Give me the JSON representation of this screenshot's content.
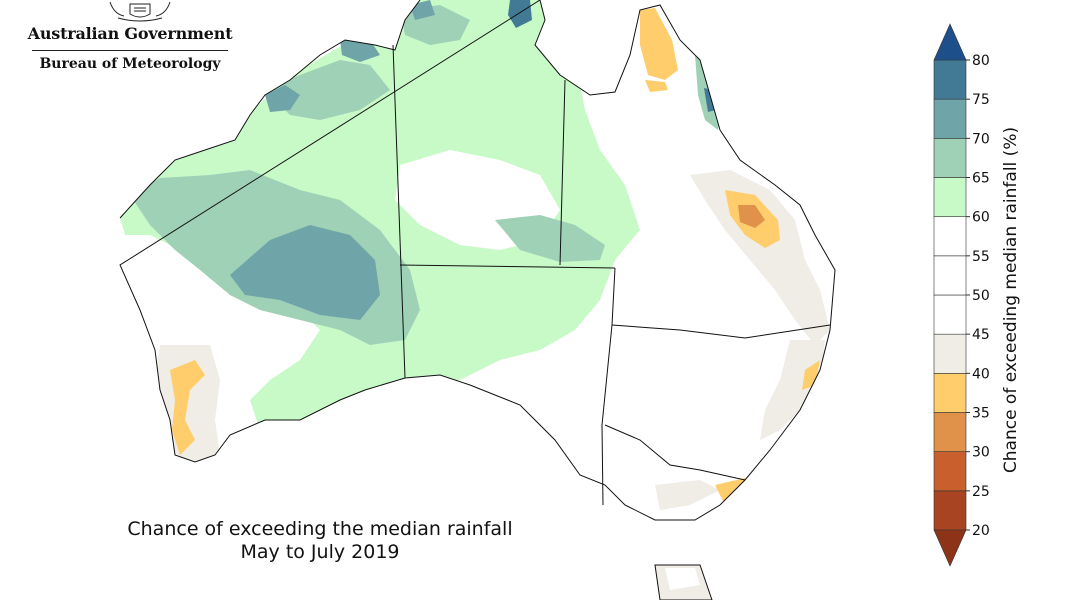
{
  "header": {
    "gov_title": "Australian Government",
    "gov_subtitle": "Bureau of Meteorology"
  },
  "caption": {
    "line1": "Chance of exceeding the median rainfall",
    "line2": "May to July 2019"
  },
  "legend": {
    "title": "Chance of exceeding median rainfall (%)",
    "ticks": [
      "20",
      "25",
      "30",
      "35",
      "40",
      "45",
      "50",
      "55",
      "60",
      "65",
      "70",
      "75",
      "80"
    ],
    "bins": [
      {
        "from": 20,
        "to": 25,
        "color": "#a84422"
      },
      {
        "from": 25,
        "to": 30,
        "color": "#c85f2d"
      },
      {
        "from": 30,
        "to": 35,
        "color": "#e0924a"
      },
      {
        "from": 35,
        "to": 40,
        "color": "#ffcd6b"
      },
      {
        "from": 40,
        "to": 45,
        "color": "#f0ece6"
      },
      {
        "from": 45,
        "to": 50,
        "color": "#ffffff"
      },
      {
        "from": 50,
        "to": 55,
        "color": "#ffffff"
      },
      {
        "from": 55,
        "to": 60,
        "color": "#ffffff"
      },
      {
        "from": 60,
        "to": 65,
        "color": "#c8fac8"
      },
      {
        "from": 65,
        "to": 70,
        "color": "#9fd1b7"
      },
      {
        "from": 70,
        "to": 75,
        "color": "#6fa4a8"
      },
      {
        "from": 75,
        "to": 80,
        "color": "#427a96"
      }
    ],
    "over_color": "#1d4f8a",
    "under_color": "#8d3418"
  },
  "map": {
    "land_color": "#ffffff",
    "outline_color": "#111111",
    "region_colors": {
      "wetter_light": "#c8fac8",
      "wetter_mid": "#9fd1b7",
      "wetter_strong": "#6fa4a8",
      "wetter_strongest": "#427a96",
      "drier_light": "#f0ece6",
      "drier_mid": "#ffcd6b",
      "drier_strong": "#e0924a"
    }
  }
}
